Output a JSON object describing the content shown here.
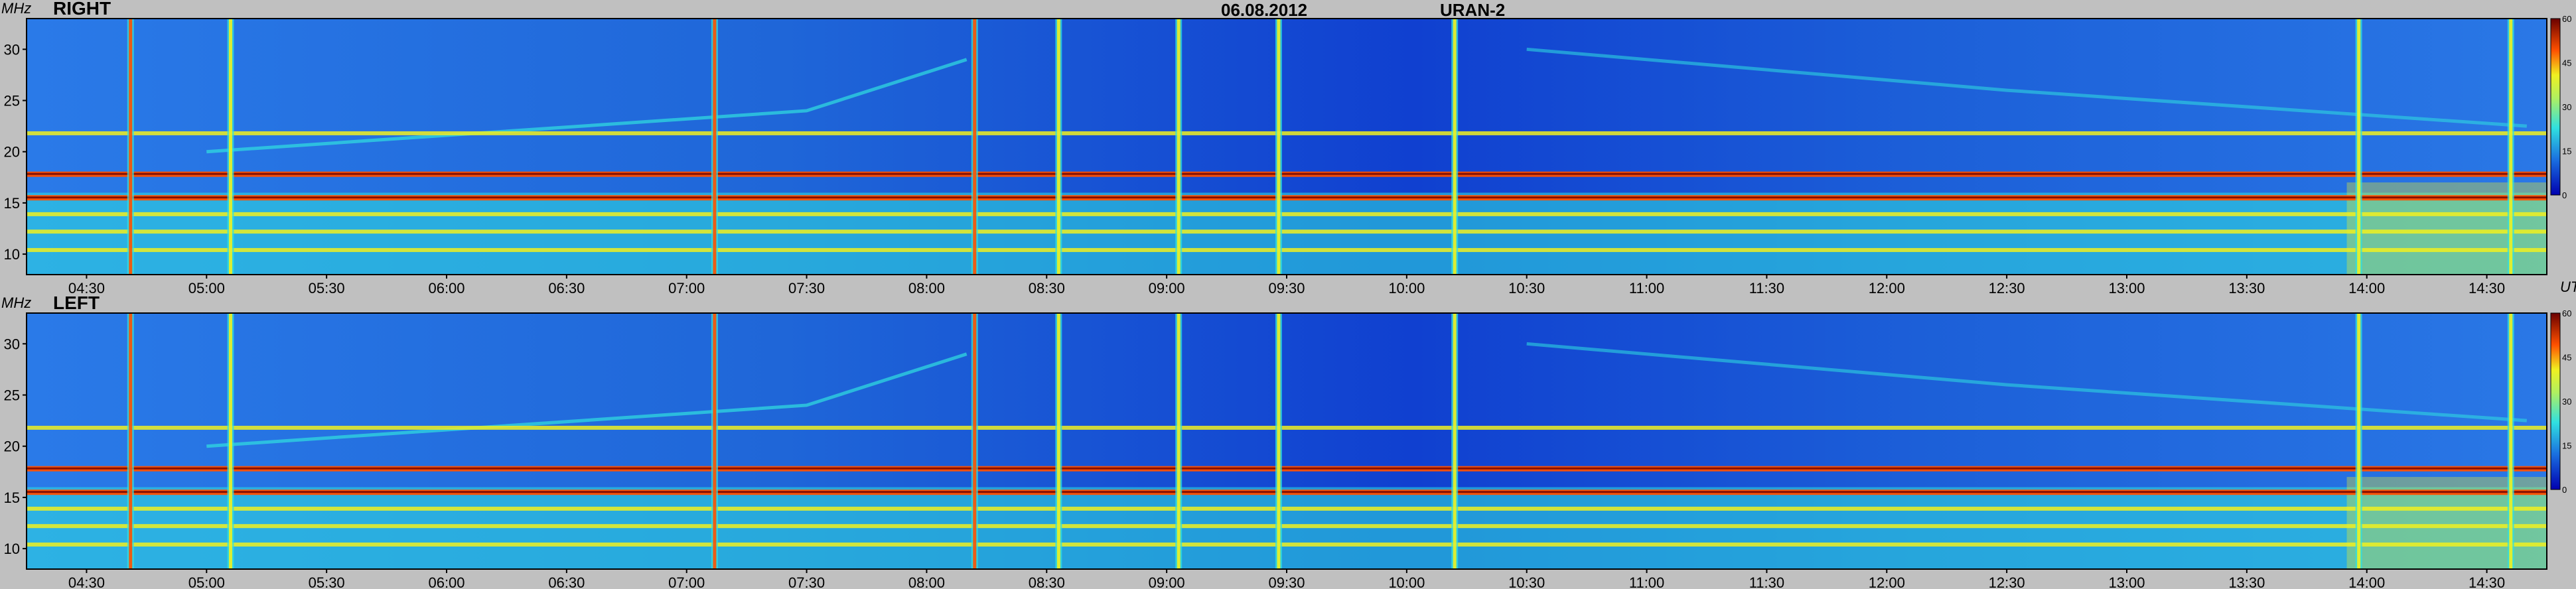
{
  "header": {
    "date": "06.08.2012",
    "instrument": "URAN-2"
  },
  "chart_data": {
    "type": "heatmap",
    "x_unit": "UT",
    "y_unit": "MHz",
    "xlim": [
      "04:15",
      "14:45"
    ],
    "ylim": [
      8,
      33
    ],
    "time_ticks": [
      "04:30",
      "05:00",
      "05:30",
      "06:00",
      "06:30",
      "07:00",
      "07:30",
      "08:00",
      "08:30",
      "09:00",
      "09:30",
      "10:00",
      "10:30",
      "11:00",
      "11:30",
      "12:00",
      "12:30",
      "13:00",
      "13:30",
      "14:00",
      "14:30"
    ],
    "freq_ticks": [
      10,
      15,
      20,
      25,
      30
    ],
    "colorbar": {
      "ticks": [
        0,
        15,
        30,
        45,
        60
      ],
      "range": [
        0,
        60
      ]
    },
    "panels": [
      {
        "label": "RIGHT",
        "polarization": "right"
      },
      {
        "label": "LEFT",
        "polarization": "left"
      }
    ],
    "colors": {
      "low": "#0000a0",
      "background": "#1a6fe0",
      "mid": "#30e0e0",
      "high_mid": "#f0f020",
      "high": "#ff5000",
      "max": "#6a0000"
    },
    "features": {
      "interference_lines_mhz": [
        17.8,
        15.5,
        13.9,
        12.2,
        10.4,
        21.8
      ],
      "vertical_bursts_ut": [
        "04:41",
        "05:06",
        "07:07",
        "08:12",
        "08:33",
        "09:03",
        "09:28",
        "10:12",
        "13:58",
        "14:36"
      ],
      "drift_band_ut": [
        "05:00",
        "14:40"
      ]
    }
  }
}
